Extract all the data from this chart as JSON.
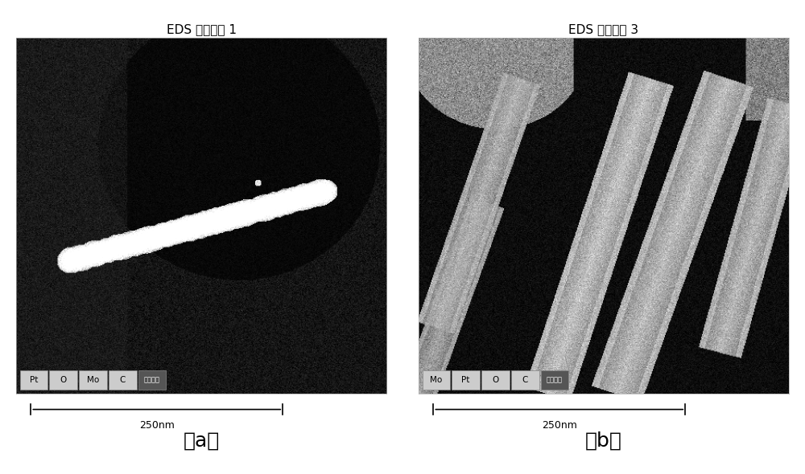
{
  "title_a": "EDS 分层图像 1",
  "title_b": "EDS 分层图像 3",
  "label_a": "（a）",
  "label_b": "（b）",
  "scale_bar_text": "250nm",
  "legend_a": [
    "Pt",
    "O",
    "Mo",
    "C",
    "电子图像"
  ],
  "legend_b": [
    "Mo",
    "Pt",
    "O",
    "C",
    "电子图像"
  ],
  "bg_color": "#ffffff",
  "title_fontsize": 11,
  "label_fontsize": 18,
  "scalebar_fontsize": 9
}
